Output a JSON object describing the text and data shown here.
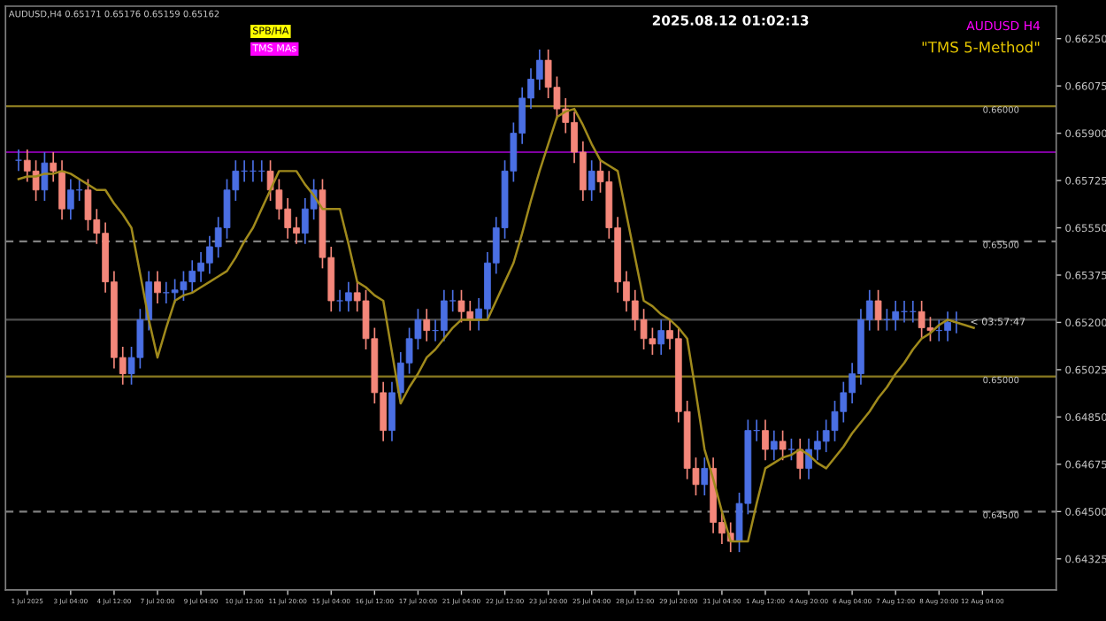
{
  "chart_data": {
    "type": "candlestick",
    "title": "2025.08.12 01:02:13",
    "annotations": [
      "AUDUSD,H4 0.65171 0.65176 0.65159 0.65162",
      "SPB/HA",
      "TMS MAs",
      "AUDUSD H4",
      "\"TMS 5-Method\"",
      "< 03:57:47"
    ],
    "categories": [
      null,
      "1 Jul 2025",
      null,
      null,
      null,
      null,
      "3 Jul 04:00",
      null,
      null,
      null,
      null,
      "4 Jul 12:00",
      null,
      null,
      null,
      null,
      "7 Jul 20:00",
      null,
      null,
      null,
      null,
      "9 Jul 04:00",
      null,
      null,
      null,
      null,
      "10 Jul 12:00",
      null,
      null,
      null,
      null,
      "11 Jul 20:00",
      null,
      null,
      null,
      null,
      "15 Jul 04:00",
      null,
      null,
      null,
      null,
      "16 Jul 12:00",
      null,
      null,
      null,
      null,
      "17 Jul 20:00",
      null,
      null,
      null,
      null,
      "21 Jul 04:00",
      null,
      null,
      null,
      null,
      "22 Jul 12:00",
      null,
      null,
      null,
      null,
      "23 Jul 20:00",
      null,
      null,
      null,
      null,
      "25 Jul 04:00",
      null,
      null,
      null,
      null,
      "28 Jul 12:00",
      null,
      null,
      null,
      null,
      "29 Jul 20:00",
      null,
      null,
      null,
      null,
      "31 Jul 04:00",
      null,
      null,
      null,
      null,
      "1 Aug 12:00",
      null,
      null,
      null,
      null,
      "4 Aug 20:00",
      null,
      null,
      null,
      null,
      "6 Aug 04:00",
      null,
      null,
      null,
      null,
      "7 Aug 12:00",
      null,
      null,
      null,
      null,
      "8 Aug 20:00",
      null,
      null,
      null,
      null,
      "12 Aug 04:00"
    ],
    "ohlc": [
      [
        0.658,
        0.6584,
        0.6576,
        0.658
      ],
      [
        0.658,
        0.6584,
        0.6572,
        0.6576
      ],
      [
        0.6576,
        0.658,
        0.6565,
        0.6569
      ],
      [
        0.6569,
        0.6583,
        0.6565,
        0.6579
      ],
      [
        0.6579,
        0.6583,
        0.6572,
        0.6576
      ],
      [
        0.6576,
        0.658,
        0.6558,
        0.6562
      ],
      [
        0.6562,
        0.6573,
        0.6558,
        0.6569
      ],
      [
        0.6569,
        0.6573,
        0.6565,
        0.6569
      ],
      [
        0.6569,
        0.6573,
        0.6554,
        0.6558
      ],
      [
        0.6558,
        0.6562,
        0.6549,
        0.6553
      ],
      [
        0.6553,
        0.6557,
        0.6531,
        0.6535
      ],
      [
        0.6535,
        0.6539,
        0.6503,
        0.6507
      ],
      [
        0.6507,
        0.6511,
        0.6497,
        0.6501
      ],
      [
        0.6501,
        0.6511,
        0.6497,
        0.6507
      ],
      [
        0.6507,
        0.6525,
        0.6503,
        0.6521
      ],
      [
        0.6521,
        0.6539,
        0.6517,
        0.6535
      ],
      [
        0.6535,
        0.6539,
        0.6527,
        0.6531
      ],
      [
        0.6531,
        0.6535,
        0.6527,
        0.6531
      ],
      [
        0.6531,
        0.6536,
        0.6527,
        0.6532
      ],
      [
        0.6532,
        0.6539,
        0.6528,
        0.6535
      ],
      [
        0.6535,
        0.6543,
        0.6531,
        0.6539
      ],
      [
        0.6539,
        0.6546,
        0.6535,
        0.6542
      ],
      [
        0.6542,
        0.6552,
        0.6538,
        0.6548
      ],
      [
        0.6548,
        0.6559,
        0.6544,
        0.6555
      ],
      [
        0.6555,
        0.6573,
        0.6551,
        0.6569
      ],
      [
        0.6569,
        0.658,
        0.6565,
        0.6576
      ],
      [
        0.6576,
        0.658,
        0.6572,
        0.6576
      ],
      [
        0.6576,
        0.658,
        0.6572,
        0.6576
      ],
      [
        0.6576,
        0.658,
        0.6572,
        0.6576
      ],
      [
        0.6576,
        0.658,
        0.6565,
        0.6569
      ],
      [
        0.6569,
        0.6573,
        0.6558,
        0.6562
      ],
      [
        0.6562,
        0.6566,
        0.6551,
        0.6555
      ],
      [
        0.6555,
        0.6559,
        0.6549,
        0.6553
      ],
      [
        0.6553,
        0.6566,
        0.6549,
        0.6562
      ],
      [
        0.6562,
        0.6573,
        0.6558,
        0.6569
      ],
      [
        0.6569,
        0.6573,
        0.654,
        0.6544
      ],
      [
        0.6544,
        0.6548,
        0.6524,
        0.6528
      ],
      [
        0.6528,
        0.6532,
        0.6524,
        0.6528
      ],
      [
        0.6528,
        0.6535,
        0.6524,
        0.6531
      ],
      [
        0.6531,
        0.6535,
        0.6524,
        0.6528
      ],
      [
        0.6528,
        0.6532,
        0.651,
        0.6514
      ],
      [
        0.6514,
        0.6518,
        0.649,
        0.6494
      ],
      [
        0.6494,
        0.6498,
        0.6476,
        0.648
      ],
      [
        0.648,
        0.6498,
        0.6476,
        0.6494
      ],
      [
        0.6494,
        0.6509,
        0.649,
        0.6505
      ],
      [
        0.6505,
        0.6518,
        0.6501,
        0.6514
      ],
      [
        0.6514,
        0.6525,
        0.651,
        0.6521
      ],
      [
        0.6521,
        0.6525,
        0.6513,
        0.6517
      ],
      [
        0.6517,
        0.6521,
        0.6513,
        0.6517
      ],
      [
        0.6517,
        0.6532,
        0.6513,
        0.6528
      ],
      [
        0.6528,
        0.6532,
        0.6524,
        0.6528
      ],
      [
        0.6528,
        0.6532,
        0.652,
        0.6524
      ],
      [
        0.6524,
        0.6528,
        0.6517,
        0.6521
      ],
      [
        0.6521,
        0.6529,
        0.6517,
        0.6525
      ],
      [
        0.6525,
        0.6546,
        0.6521,
        0.6542
      ],
      [
        0.6542,
        0.6559,
        0.6538,
        0.6555
      ],
      [
        0.6555,
        0.658,
        0.6551,
        0.6576
      ],
      [
        0.6576,
        0.6594,
        0.6572,
        0.659
      ],
      [
        0.659,
        0.6607,
        0.6586,
        0.6603
      ],
      [
        0.6603,
        0.6614,
        0.6599,
        0.661
      ],
      [
        0.661,
        0.6621,
        0.6606,
        0.6617
      ],
      [
        0.6617,
        0.6621,
        0.6603,
        0.6607
      ],
      [
        0.6607,
        0.6611,
        0.6595,
        0.6599
      ],
      [
        0.6599,
        0.6603,
        0.659,
        0.6594
      ],
      [
        0.6594,
        0.6598,
        0.6579,
        0.6583
      ],
      [
        0.6583,
        0.6587,
        0.6565,
        0.6569
      ],
      [
        0.6569,
        0.658,
        0.6565,
        0.6576
      ],
      [
        0.6576,
        0.658,
        0.6568,
        0.6572
      ],
      [
        0.6572,
        0.6576,
        0.6551,
        0.6555
      ],
      [
        0.6555,
        0.6559,
        0.6531,
        0.6535
      ],
      [
        0.6535,
        0.6539,
        0.6524,
        0.6528
      ],
      [
        0.6528,
        0.6532,
        0.6517,
        0.6521
      ],
      [
        0.6521,
        0.6525,
        0.651,
        0.6514
      ],
      [
        0.6514,
        0.6518,
        0.6508,
        0.6512
      ],
      [
        0.6512,
        0.6521,
        0.6508,
        0.6517
      ],
      [
        0.6517,
        0.6521,
        0.651,
        0.6514
      ],
      [
        0.6514,
        0.6518,
        0.6483,
        0.6487
      ],
      [
        0.6487,
        0.6491,
        0.6462,
        0.6466
      ],
      [
        0.6466,
        0.647,
        0.6456,
        0.646
      ],
      [
        0.646,
        0.647,
        0.6456,
        0.6466
      ],
      [
        0.6466,
        0.647,
        0.6442,
        0.6446
      ],
      [
        0.6446,
        0.645,
        0.6438,
        0.6442
      ],
      [
        0.6442,
        0.6446,
        0.6435,
        0.6439
      ],
      [
        0.6439,
        0.6457,
        0.6435,
        0.6453
      ],
      [
        0.6453,
        0.6484,
        0.6449,
        0.648
      ],
      [
        0.648,
        0.6484,
        0.6476,
        0.648
      ],
      [
        0.648,
        0.6484,
        0.6469,
        0.6473
      ],
      [
        0.6473,
        0.648,
        0.6469,
        0.6476
      ],
      [
        0.6476,
        0.648,
        0.6469,
        0.6473
      ],
      [
        0.6473,
        0.6477,
        0.6469,
        0.6473
      ],
      [
        0.6473,
        0.6477,
        0.6462,
        0.6466
      ],
      [
        0.6466,
        0.6477,
        0.6462,
        0.6473
      ],
      [
        0.6473,
        0.648,
        0.6469,
        0.6476
      ],
      [
        0.6476,
        0.6484,
        0.6472,
        0.648
      ],
      [
        0.648,
        0.6491,
        0.6476,
        0.6487
      ],
      [
        0.6487,
        0.6498,
        0.6483,
        0.6494
      ],
      [
        0.6494,
        0.6505,
        0.649,
        0.6501
      ],
      [
        0.6501,
        0.6525,
        0.6497,
        0.6521
      ],
      [
        0.6521,
        0.6532,
        0.6517,
        0.6528
      ],
      [
        0.6528,
        0.6532,
        0.6517,
        0.6521
      ],
      [
        0.6521,
        0.6525,
        0.6517,
        0.6521
      ],
      [
        0.6521,
        0.6528,
        0.6517,
        0.6524
      ],
      [
        0.6524,
        0.6528,
        0.652,
        0.6524
      ],
      [
        0.6524,
        0.6528,
        0.652,
        0.6524
      ],
      [
        0.6524,
        0.6528,
        0.6514,
        0.6518
      ],
      [
        0.6518,
        0.6522,
        0.6513,
        0.6517
      ],
      [
        0.6517,
        0.6521,
        0.6513,
        0.6517
      ],
      [
        0.6517,
        0.6524,
        0.6513,
        0.652
      ],
      [
        0.652,
        0.6524,
        0.6516,
        0.652
      ],
      null,
      null,
      null
    ],
    "colors": [
      "#4a6fe3",
      "#f4877a",
      "#f4877a",
      "#4a6fe3",
      "#f4877a",
      "#f4877a",
      "#4a6fe3",
      "#4a6fe3",
      "#f4877a",
      "#f4877a",
      "#f4877a",
      "#f4877a",
      "#f4877a",
      "#4a6fe3",
      "#4a6fe3",
      "#4a6fe3",
      "#f4877a",
      "#4a6fe3",
      "#4a6fe3",
      "#4a6fe3",
      "#4a6fe3",
      "#4a6fe3",
      "#4a6fe3",
      "#4a6fe3",
      "#4a6fe3",
      "#4a6fe3",
      "#4a6fe3",
      "#4a6fe3",
      "#4a6fe3",
      "#f4877a",
      "#f4877a",
      "#f4877a",
      "#f4877a",
      "#4a6fe3",
      "#4a6fe3",
      "#f4877a",
      "#f4877a",
      "#4a6fe3",
      "#4a6fe3",
      "#f4877a",
      "#f4877a",
      "#f4877a",
      "#f4877a",
      "#4a6fe3",
      "#4a6fe3",
      "#4a6fe3",
      "#4a6fe3",
      "#f4877a",
      "#4a6fe3",
      "#4a6fe3",
      "#4a6fe3",
      "#f4877a",
      "#f4877a",
      "#4a6fe3",
      "#4a6fe3",
      "#4a6fe3",
      "#4a6fe3",
      "#4a6fe3",
      "#4a6fe3",
      "#4a6fe3",
      "#4a6fe3",
      "#f4877a",
      "#f4877a",
      "#f4877a",
      "#f4877a",
      "#f4877a",
      "#4a6fe3",
      "#f4877a",
      "#f4877a",
      "#f4877a",
      "#f4877a",
      "#f4877a",
      "#f4877a",
      "#f4877a",
      "#4a6fe3",
      "#f4877a",
      "#f4877a",
      "#f4877a",
      "#f4877a",
      "#4a6fe3",
      "#f4877a",
      "#f4877a",
      "#f4877a",
      "#4a6fe3",
      "#4a6fe3",
      "#4a6fe3",
      "#f4877a",
      "#4a6fe3",
      "#f4877a",
      "#4a6fe3",
      "#f4877a",
      "#4a6fe3",
      "#4a6fe3",
      "#4a6fe3",
      "#4a6fe3",
      "#4a6fe3",
      "#4a6fe3",
      "#4a6fe3",
      "#4a6fe3",
      "#f4877a",
      "#4a6fe3",
      "#4a6fe3",
      "#4a6fe3",
      "#4a6fe3",
      "#f4877a",
      "#f4877a",
      "#4a6fe3",
      "#4a6fe3",
      "#4a6fe3",
      null,
      null,
      null
    ],
    "series": [
      {
        "type": "line",
        "color": "#a08a1c",
        "values": [
          0.6573,
          0.6574,
          0.6574,
          0.6575,
          0.6575,
          0.6576,
          0.6575,
          0.6573,
          0.6571,
          0.6569,
          0.6569,
          0.6564,
          0.656,
          0.6555,
          0.6538,
          0.6521,
          0.6507,
          0.6518,
          0.6528,
          0.653,
          0.6531,
          0.6533,
          0.6535,
          0.6537,
          0.6539,
          0.6544,
          0.655,
          0.6555,
          0.6562,
          0.6569,
          0.6576,
          0.6576,
          0.6576,
          0.6571,
          0.6567,
          0.6562,
          0.6562,
          0.6562,
          0.6549,
          0.6535,
          0.6533,
          0.653,
          0.6528,
          0.6509,
          0.649,
          0.6496,
          0.6501,
          0.6507,
          0.651,
          0.6514,
          0.6518,
          0.6521,
          0.6521,
          0.6521,
          0.6521,
          0.6528,
          0.6535,
          0.6542,
          0.6553,
          0.6565,
          0.6576,
          0.6586,
          0.6596,
          0.6598,
          0.6599,
          0.6593,
          0.6586,
          0.658,
          0.6578,
          0.6576,
          0.656,
          0.6544,
          0.6528,
          0.6526,
          0.6523,
          0.6521,
          0.6518,
          0.6514,
          0.6494,
          0.6473,
          0.6462,
          0.645,
          0.6439,
          0.6439,
          0.6439,
          0.6453,
          0.6466,
          0.6468,
          0.647,
          0.6471,
          0.6473,
          0.6471,
          0.6468,
          0.6466,
          0.647,
          0.6474,
          0.6479,
          0.6483,
          0.6487,
          0.6492,
          0.6496,
          0.6501,
          0.6505,
          0.651,
          0.6514,
          0.6516,
          0.6519,
          0.6521,
          0.652,
          0.6519,
          0.6518,
          null
        ]
      }
    ],
    "ref_lines": [
      {
        "axis": "y",
        "value": 0.66,
        "label": "0.66000",
        "color": "#8a7a20",
        "line_style": "solid"
      },
      {
        "axis": "y",
        "value": 0.6583,
        "label": null,
        "color": "#8000a0",
        "line_style": "solid"
      },
      {
        "axis": "y",
        "value": 0.655,
        "label": "0.65500",
        "color": "#808080",
        "line_style": "dashed"
      },
      {
        "axis": "y",
        "value": 0.6521,
        "label": null,
        "color": "#505050",
        "line_style": "solid"
      },
      {
        "axis": "y",
        "value": 0.65,
        "label": "0.65000",
        "color": "#8a7a20",
        "line_style": "solid"
      },
      {
        "axis": "y",
        "value": 0.645,
        "label": "0.64500",
        "color": "#808080",
        "line_style": "dashed"
      }
    ],
    "ylim": [
      0.6421,
      0.6637
    ],
    "yticks": [
      {
        "value": 0.6625,
        "label": "0.66250"
      },
      {
        "value": 0.66075,
        "label": "0.66075"
      },
      {
        "value": 0.659,
        "label": "0.65900"
      },
      {
        "value": 0.65725,
        "label": "0.65725"
      },
      {
        "value": 0.6555,
        "label": "0.65550"
      },
      {
        "value": 0.65375,
        "label": "0.65375"
      },
      {
        "value": 0.652,
        "label": "0.65200"
      },
      {
        "value": 0.65025,
        "label": "0.65025"
      },
      {
        "value": 0.6485,
        "label": "0.64850"
      },
      {
        "value": 0.64675,
        "label": "0.64675"
      },
      {
        "value": 0.645,
        "label": "0.64500"
      },
      {
        "value": 0.64325,
        "label": "0.64325"
      }
    ],
    "grid": false,
    "legend": false
  }
}
